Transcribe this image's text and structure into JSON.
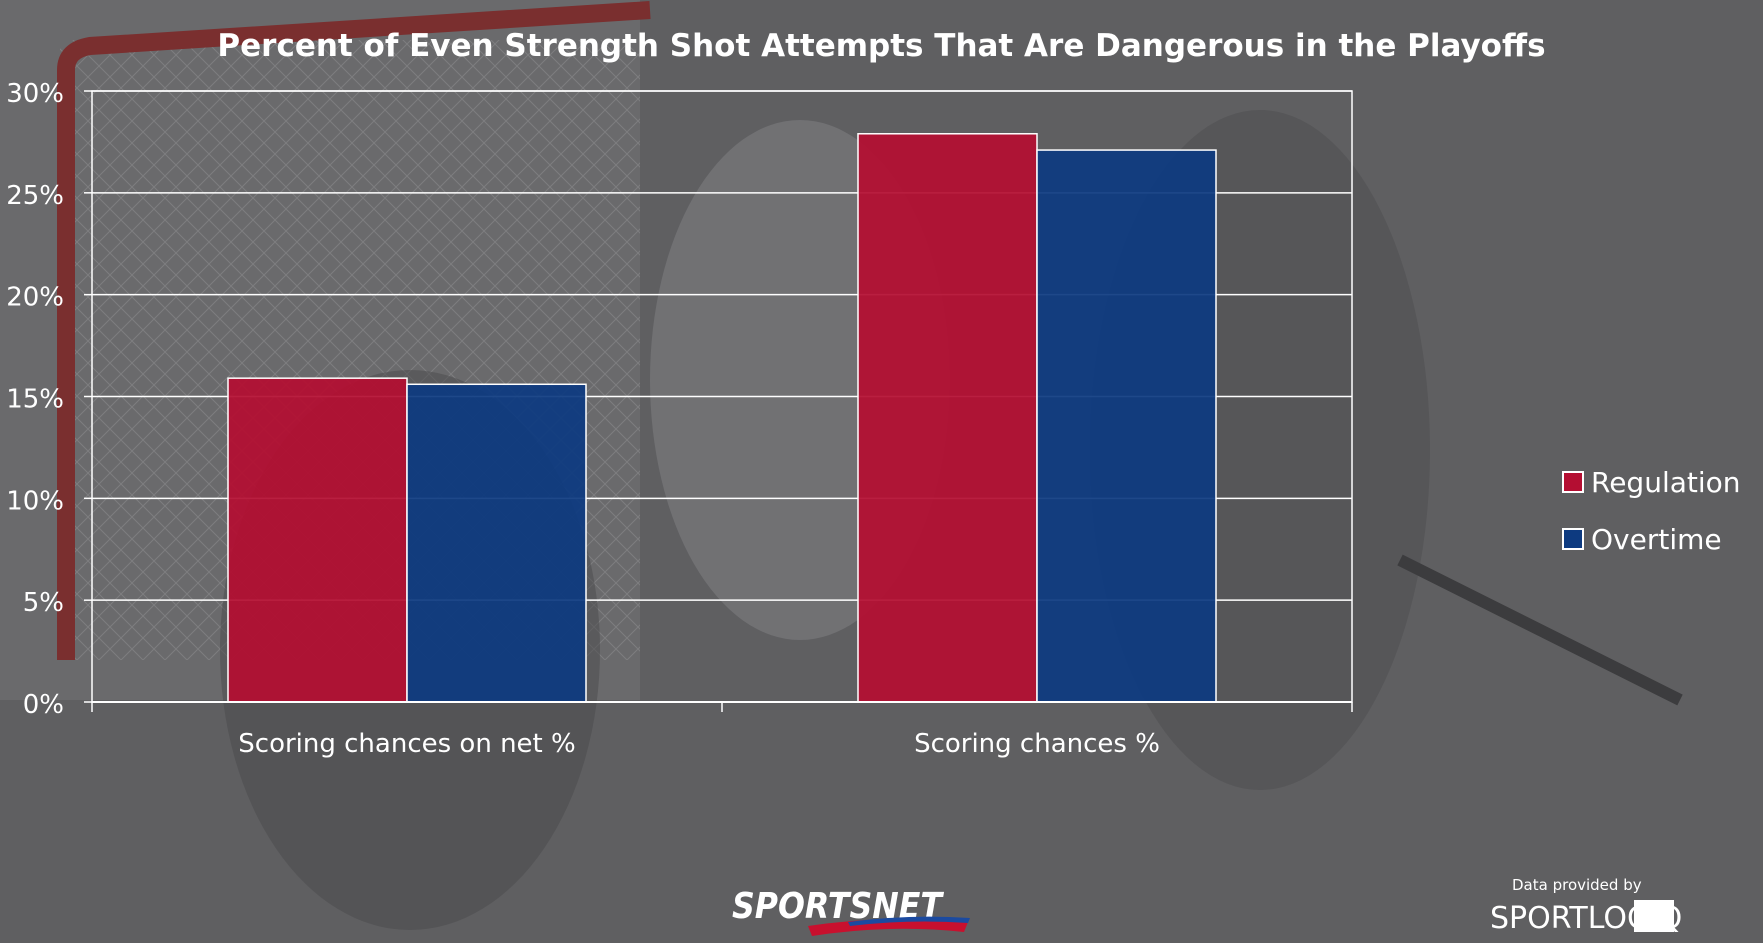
{
  "chart_data": {
    "type": "bar",
    "title": "Percent of Even Strength Shot Attempts That Are Dangerous in the Playoffs",
    "xlabel": "",
    "ylabel": "",
    "categories": [
      "Scoring chances on net %",
      "Scoring chances %"
    ],
    "series": [
      {
        "name": "Regulation",
        "values": [
          15.9,
          27.9
        ],
        "color": "#b40e32"
      },
      {
        "name": "Overtime",
        "values": [
          15.6,
          27.1
        ],
        "color": "#0d3a80"
      }
    ],
    "ylim": [
      0,
      30
    ],
    "yticks": [
      0,
      5,
      10,
      15,
      20,
      25,
      30
    ],
    "ytick_labels": [
      "0%",
      "5%",
      "10%",
      "15%",
      "20%",
      "25%",
      "30%"
    ],
    "grid": true,
    "legend_position": "right"
  },
  "footer": {
    "brand": "SPORTSNET",
    "credit": "Data provided by",
    "partner": "SPORTLOGiQ"
  },
  "colors": {
    "text": "#ffffff",
    "grid": "#ffffff",
    "background": "#5c5c5e"
  }
}
